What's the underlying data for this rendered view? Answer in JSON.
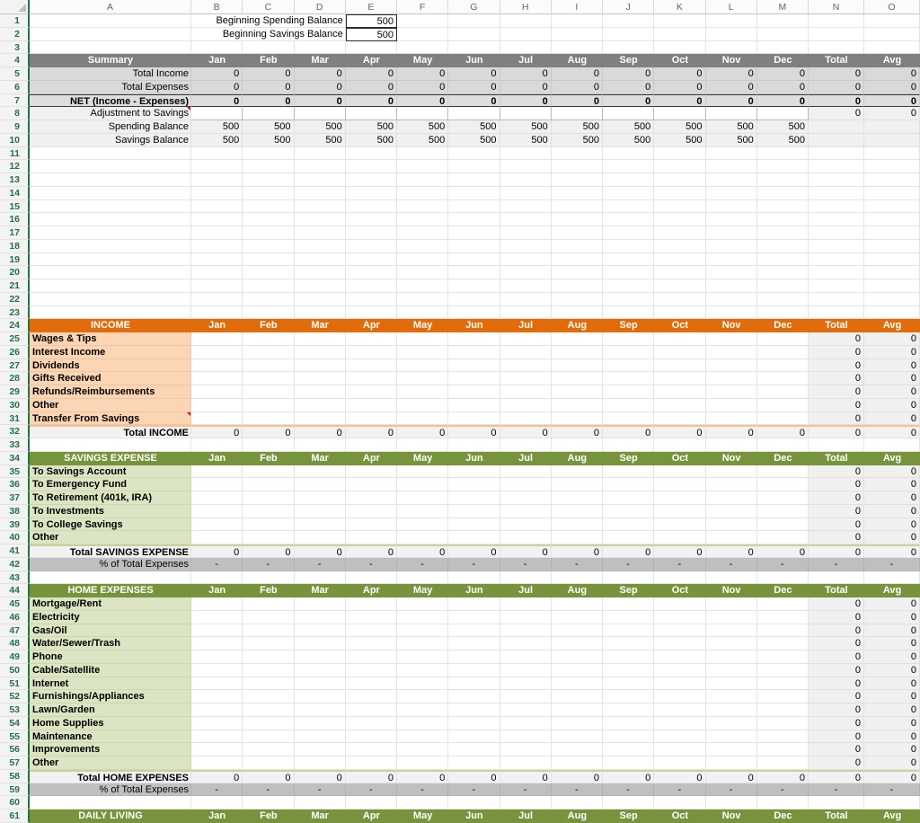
{
  "columns": [
    "A",
    "B",
    "C",
    "D",
    "E",
    "F",
    "G",
    "H",
    "I",
    "J",
    "K",
    "L",
    "M",
    "N",
    "O"
  ],
  "months": [
    "Jan",
    "Feb",
    "Mar",
    "Apr",
    "May",
    "Jun",
    "Jul",
    "Aug",
    "Sep",
    "Oct",
    "Nov",
    "Dec",
    "Total",
    "Avg"
  ],
  "colors": {
    "summary_header": "#808080",
    "income_header": "#E26B0A",
    "income_label_bg": "#FBD5B4",
    "expense_header": "#77933C",
    "expense_label_bg": "#DBE5C3",
    "summary_row_bg": "#D9D9D9",
    "pct_row_bg": "#BFBFBF",
    "row_number_green": "#217346",
    "comment_red": "#D40000"
  },
  "rows": [
    {
      "n": 1,
      "type": "topinput",
      "label": "Beginning Spending Balance",
      "value": "500"
    },
    {
      "n": 2,
      "type": "topinput",
      "label": "Beginning Savings Balance",
      "value": "500"
    },
    {
      "n": 3,
      "type": "empty"
    },
    {
      "n": 4,
      "type": "header",
      "variant": "gray",
      "title": "Summary"
    },
    {
      "n": 5,
      "type": "data",
      "label": "Total Income",
      "vals": [
        "0",
        "0",
        "0",
        "0",
        "0",
        "0",
        "0",
        "0",
        "0",
        "0",
        "0",
        "0",
        "0",
        "0"
      ]
    },
    {
      "n": 6,
      "type": "data",
      "label": "Total Expenses",
      "vals": [
        "0",
        "0",
        "0",
        "0",
        "0",
        "0",
        "0",
        "0",
        "0",
        "0",
        "0",
        "0",
        "0",
        "0"
      ]
    },
    {
      "n": 7,
      "type": "net",
      "label": "NET (Income - Expenses)",
      "vals": [
        "0",
        "0",
        "0",
        "0",
        "0",
        "0",
        "0",
        "0",
        "0",
        "0",
        "0",
        "0",
        "0",
        "0"
      ]
    },
    {
      "n": 8,
      "type": "adjust",
      "label": "Adjustment to Savings",
      "total": "0",
      "avg": "0",
      "comment": true
    },
    {
      "n": 9,
      "type": "balance",
      "label": "Spending Balance",
      "vals": [
        "500",
        "500",
        "500",
        "500",
        "500",
        "500",
        "500",
        "500",
        "500",
        "500",
        "500",
        "500"
      ]
    },
    {
      "n": 10,
      "type": "balance",
      "label": "Savings Balance",
      "vals": [
        "500",
        "500",
        "500",
        "500",
        "500",
        "500",
        "500",
        "500",
        "500",
        "500",
        "500",
        "500"
      ]
    },
    {
      "n": 11,
      "type": "empty"
    },
    {
      "n": 12,
      "type": "empty"
    },
    {
      "n": 13,
      "type": "empty"
    },
    {
      "n": 14,
      "type": "empty"
    },
    {
      "n": 15,
      "type": "empty"
    },
    {
      "n": 16,
      "type": "empty"
    },
    {
      "n": 17,
      "type": "empty"
    },
    {
      "n": 18,
      "type": "empty"
    },
    {
      "n": 19,
      "type": "empty"
    },
    {
      "n": 20,
      "type": "empty"
    },
    {
      "n": 21,
      "type": "empty"
    },
    {
      "n": 22,
      "type": "empty"
    },
    {
      "n": 23,
      "type": "empty"
    },
    {
      "n": 24,
      "type": "header",
      "variant": "orange",
      "title": "INCOME"
    },
    {
      "n": 25,
      "type": "item",
      "variant": "orange",
      "label": "Wages & Tips",
      "total": "0",
      "avg": "0"
    },
    {
      "n": 26,
      "type": "item",
      "variant": "orange",
      "label": "Interest Income",
      "total": "0",
      "avg": "0"
    },
    {
      "n": 27,
      "type": "item",
      "variant": "orange",
      "label": "Dividends",
      "total": "0",
      "avg": "0"
    },
    {
      "n": 28,
      "type": "item",
      "variant": "orange",
      "label": "Gifts Received",
      "total": "0",
      "avg": "0"
    },
    {
      "n": 29,
      "type": "item",
      "variant": "orange",
      "label": "Refunds/Reimbursements",
      "total": "0",
      "avg": "0"
    },
    {
      "n": 30,
      "type": "item",
      "variant": "orange",
      "label": "Other",
      "total": "0",
      "avg": "0"
    },
    {
      "n": 31,
      "type": "item",
      "variant": "orange",
      "label": "Transfer From Savings",
      "total": "0",
      "avg": "0",
      "comment": true
    },
    {
      "n": 32,
      "type": "total",
      "variant": "orange",
      "label": "Total INCOME",
      "vals": [
        "0",
        "0",
        "0",
        "0",
        "0",
        "0",
        "0",
        "0",
        "0",
        "0",
        "0",
        "0",
        "0",
        "0"
      ]
    },
    {
      "n": 33,
      "type": "empty"
    },
    {
      "n": 34,
      "type": "header",
      "variant": "green",
      "title": "SAVINGS EXPENSE"
    },
    {
      "n": 35,
      "type": "item",
      "variant": "green",
      "label": "To Savings Account",
      "total": "0",
      "avg": "0"
    },
    {
      "n": 36,
      "type": "item",
      "variant": "green",
      "label": "To Emergency Fund",
      "total": "0",
      "avg": "0"
    },
    {
      "n": 37,
      "type": "item",
      "variant": "green",
      "label": "To Retirement (401k, IRA)",
      "total": "0",
      "avg": "0"
    },
    {
      "n": 38,
      "type": "item",
      "variant": "green",
      "label": "To Investments",
      "total": "0",
      "avg": "0"
    },
    {
      "n": 39,
      "type": "item",
      "variant": "green",
      "label": "To College Savings",
      "total": "0",
      "avg": "0"
    },
    {
      "n": 40,
      "type": "item",
      "variant": "green",
      "label": "Other",
      "total": "0",
      "avg": "0"
    },
    {
      "n": 41,
      "type": "total",
      "variant": "green",
      "label": "Total SAVINGS EXPENSE",
      "vals": [
        "0",
        "0",
        "0",
        "0",
        "0",
        "0",
        "0",
        "0",
        "0",
        "0",
        "0",
        "0",
        "0",
        "0"
      ]
    },
    {
      "n": 42,
      "type": "pct",
      "label": "% of Total Expenses",
      "vals": [
        "-",
        "-",
        "-",
        "-",
        "-",
        "-",
        "-",
        "-",
        "-",
        "-",
        "-",
        "-",
        "-",
        "-"
      ]
    },
    {
      "n": 43,
      "type": "empty"
    },
    {
      "n": 44,
      "type": "header",
      "variant": "green",
      "title": "HOME EXPENSES"
    },
    {
      "n": 45,
      "type": "item",
      "variant": "green",
      "label": "Mortgage/Rent",
      "total": "0",
      "avg": "0"
    },
    {
      "n": 46,
      "type": "item",
      "variant": "green",
      "label": "Electricity",
      "total": "0",
      "avg": "0"
    },
    {
      "n": 47,
      "type": "item",
      "variant": "green",
      "label": "Gas/Oil",
      "total": "0",
      "avg": "0"
    },
    {
      "n": 48,
      "type": "item",
      "variant": "green",
      "label": "Water/Sewer/Trash",
      "total": "0",
      "avg": "0"
    },
    {
      "n": 49,
      "type": "item",
      "variant": "green",
      "label": "Phone",
      "total": "0",
      "avg": "0"
    },
    {
      "n": 50,
      "type": "item",
      "variant": "green",
      "label": "Cable/Satellite",
      "total": "0",
      "avg": "0"
    },
    {
      "n": 51,
      "type": "item",
      "variant": "green",
      "label": "Internet",
      "total": "0",
      "avg": "0"
    },
    {
      "n": 52,
      "type": "item",
      "variant": "green",
      "label": "Furnishings/Appliances",
      "total": "0",
      "avg": "0"
    },
    {
      "n": 53,
      "type": "item",
      "variant": "green",
      "label": "Lawn/Garden",
      "total": "0",
      "avg": "0"
    },
    {
      "n": 54,
      "type": "item",
      "variant": "green",
      "label": "Home Supplies",
      "total": "0",
      "avg": "0"
    },
    {
      "n": 55,
      "type": "item",
      "variant": "green",
      "label": "Maintenance",
      "total": "0",
      "avg": "0"
    },
    {
      "n": 56,
      "type": "item",
      "variant": "green",
      "label": "Improvements",
      "total": "0",
      "avg": "0"
    },
    {
      "n": 57,
      "type": "item",
      "variant": "green",
      "label": "Other",
      "total": "0",
      "avg": "0"
    },
    {
      "n": 58,
      "type": "total",
      "variant": "green",
      "label": "Total HOME EXPENSES",
      "vals": [
        "0",
        "0",
        "0",
        "0",
        "0",
        "0",
        "0",
        "0",
        "0",
        "0",
        "0",
        "0",
        "0",
        "0"
      ]
    },
    {
      "n": 59,
      "type": "pct",
      "label": "% of Total Expenses",
      "vals": [
        "-",
        "-",
        "-",
        "-",
        "-",
        "-",
        "-",
        "-",
        "-",
        "-",
        "-",
        "-",
        "-",
        "-"
      ]
    },
    {
      "n": 60,
      "type": "empty"
    },
    {
      "n": 61,
      "type": "header",
      "variant": "green",
      "title": "DAILY LIVING"
    }
  ]
}
